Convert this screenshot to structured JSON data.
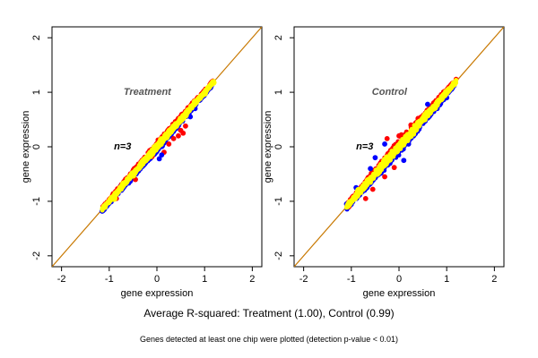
{
  "captions": {
    "main": "Average R-squared: Treatment (1.00), Control (0.99)",
    "note": "Genes detected at least one chip were plotted (detection p-value < 0.01)"
  },
  "colors": {
    "diagonal": "#c87800",
    "above": "#ff0000",
    "below": "#0000ff",
    "points": "#ffff00"
  },
  "chart_data": [
    {
      "type": "scatter",
      "title": "Treatment",
      "annotation": "n=3",
      "xlabel": "gene expression",
      "ylabel": "gene expression",
      "xlim": [
        -2.2,
        2.2
      ],
      "ylim": [
        -2.2,
        2.2
      ],
      "xticks": [
        "-2",
        "-1",
        "0",
        "1",
        "2"
      ],
      "yticks": [
        "-2",
        "-1",
        "0",
        "1",
        "2"
      ],
      "grid": false,
      "reference_line": "y = x",
      "cloud": {
        "x_range": [
          -1.15,
          1.2
        ],
        "spread": 0.07
      },
      "series": [
        {
          "color": "#ffff00",
          "points": [
            [
              -1.1,
              -1.1
            ],
            [
              -0.9,
              -0.95
            ],
            [
              -0.7,
              -0.68
            ],
            [
              -0.5,
              -0.52
            ],
            [
              -0.3,
              -0.28
            ],
            [
              -0.1,
              -0.12
            ],
            [
              0.0,
              0.02
            ],
            [
              0.2,
              0.18
            ],
            [
              0.4,
              0.41
            ],
            [
              0.6,
              0.58
            ],
            [
              0.8,
              0.82
            ],
            [
              1.0,
              0.98
            ],
            [
              1.18,
              1.18
            ]
          ]
        },
        {
          "color": "#ff0000",
          "points": [
            [
              -0.85,
              -0.95
            ],
            [
              -0.1,
              -0.18
            ],
            [
              0.15,
              -0.1
            ],
            [
              0.25,
              0.05
            ],
            [
              0.35,
              0.15
            ],
            [
              0.45,
              0.2
            ],
            [
              0.5,
              0.3
            ],
            [
              0.55,
              0.25
            ],
            [
              0.6,
              0.38
            ],
            [
              -0.45,
              -0.6
            ]
          ]
        },
        {
          "color": "#0000ff",
          "points": [
            [
              -1.15,
              -1.18
            ],
            [
              -0.75,
              -0.72
            ],
            [
              0.05,
              -0.22
            ],
            [
              0.1,
              -0.15
            ],
            [
              0.0,
              -0.08
            ],
            [
              0.7,
              0.55
            ],
            [
              0.8,
              0.7
            ]
          ]
        }
      ]
    },
    {
      "type": "scatter",
      "title": "Control",
      "annotation": "n=3",
      "xlabel": "gene expression",
      "ylabel": "gene expression",
      "xlim": [
        -2.2,
        2.2
      ],
      "ylim": [
        -2.2,
        2.2
      ],
      "xticks": [
        "-2",
        "-1",
        "0",
        "1",
        "2"
      ],
      "yticks": [
        "-2",
        "-1",
        "0",
        "1",
        "2"
      ],
      "grid": false,
      "reference_line": "y = x",
      "cloud": {
        "x_range": [
          -1.1,
          1.2
        ],
        "spread": 0.11
      },
      "series": [
        {
          "color": "#ffff00",
          "points": [
            [
              -1.05,
              -1.05
            ],
            [
              -0.85,
              -0.8
            ],
            [
              -0.65,
              -0.62
            ],
            [
              -0.45,
              -0.48
            ],
            [
              -0.25,
              -0.2
            ],
            [
              -0.05,
              -0.08
            ],
            [
              0.15,
              0.18
            ],
            [
              0.35,
              0.32
            ],
            [
              0.55,
              0.58
            ],
            [
              0.75,
              0.72
            ],
            [
              0.95,
              0.95
            ],
            [
              1.15,
              1.15
            ]
          ]
        },
        {
          "color": "#ff0000",
          "points": [
            [
              -1.05,
              -1.1
            ],
            [
              -0.7,
              -0.95
            ],
            [
              -0.55,
              -0.78
            ],
            [
              -0.3,
              -0.55
            ],
            [
              -0.1,
              -0.38
            ],
            [
              0.05,
              0.22
            ],
            [
              0.0,
              0.2
            ],
            [
              0.25,
              0.4
            ],
            [
              0.4,
              0.52
            ],
            [
              -0.25,
              0.15
            ]
          ]
        },
        {
          "color": "#0000ff",
          "points": [
            [
              -1.1,
              -1.05
            ],
            [
              -0.9,
              -0.75
            ],
            [
              -0.6,
              -0.4
            ],
            [
              -0.5,
              -0.2
            ],
            [
              -0.3,
              0.05
            ],
            [
              0.1,
              -0.25
            ],
            [
              0.2,
              0.05
            ],
            [
              0.6,
              0.78
            ],
            [
              0.8,
              0.7
            ],
            [
              1.0,
              0.9
            ]
          ]
        }
      ]
    }
  ]
}
